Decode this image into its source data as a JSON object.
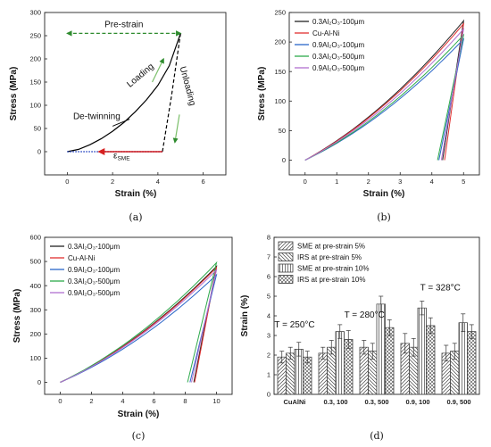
{
  "chart_data": [
    {
      "panel_label": "(a)",
      "type": "line",
      "xlabel": "Strain (%)",
      "ylabel": "Stress (MPa)",
      "xlim": [
        -1,
        7
      ],
      "ylim": [
        -50,
        300
      ],
      "xticks": [
        0,
        2,
        4,
        6
      ],
      "yticks": [
        0,
        50,
        100,
        150,
        200,
        250,
        300
      ],
      "curves": [
        {
          "role": "loading",
          "style": "solid",
          "color": "#000000",
          "points": [
            [
              0,
              0
            ],
            [
              0.5,
              5
            ],
            [
              1,
              15
            ],
            [
              1.5,
              28
            ],
            [
              2,
              44
            ],
            [
              2.5,
              63
            ],
            [
              3,
              86
            ],
            [
              3.5,
              112
            ],
            [
              4,
              143
            ],
            [
              4.5,
              185
            ],
            [
              5,
              255
            ]
          ]
        },
        {
          "role": "unloading",
          "style": "dashed",
          "color": "#000000",
          "points": [
            [
              5,
              255
            ],
            [
              4.6,
              120
            ],
            [
              4.3,
              30
            ],
            [
              4.2,
              0
            ]
          ]
        },
        {
          "role": "pre-strain",
          "style": "dashed-arrow",
          "color": "#2e8b2e",
          "points": [
            [
              0,
              255
            ],
            [
              5,
              255
            ]
          ]
        },
        {
          "role": "recovery",
          "style": "dotted",
          "color": "#1f3fbf",
          "points": [
            [
              0,
              0
            ],
            [
              4.2,
              0
            ]
          ]
        },
        {
          "role": "sme-arrow",
          "style": "arrow",
          "color": "#d62020",
          "points": [
            [
              4.2,
              0
            ],
            [
              1.4,
              0
            ]
          ]
        }
      ],
      "annotations": [
        {
          "text": "Pre-strain",
          "x": 2.5,
          "y": 268,
          "color": "#e02020"
        },
        {
          "text": "Loading",
          "x": 3.3,
          "y": 160,
          "rotate": -40
        },
        {
          "text": "Unloading",
          "x": 5.2,
          "y": 140,
          "rotate": 75
        },
        {
          "text": "De-twinning",
          "x": 1.3,
          "y": 70
        },
        {
          "text": "ε",
          "sub": "SME",
          "x": 2.4,
          "y": -14,
          "color": "#d62020"
        }
      ]
    },
    {
      "panel_label": "(b)",
      "type": "line",
      "xlabel": "Strain (%)",
      "ylabel": "Stress (MPa)",
      "xlim": [
        -0.5,
        5.5
      ],
      "ylim": [
        -25,
        250
      ],
      "xticks": [
        0,
        1,
        2,
        3,
        4,
        5
      ],
      "yticks": [
        0,
        50,
        100,
        150,
        200,
        250
      ],
      "legend_position": "top-left",
      "series": [
        {
          "name": "0.3Al₂O₃-100μm",
          "color": "#222222",
          "peak": [
            5,
            236
          ],
          "end": [
            4.34,
            0
          ]
        },
        {
          "name": "Cu-Al-Ni",
          "color": "#e03030",
          "peak": [
            5,
            231
          ],
          "end": [
            4.4,
            0
          ]
        },
        {
          "name": "0.9Al₂O₃-100μm",
          "color": "#2a66c8",
          "peak": [
            5,
            205
          ],
          "end": [
            4.22,
            0
          ]
        },
        {
          "name": "0.3Al₂O₃-500μm",
          "color": "#2eaa4c",
          "peak": [
            5,
            212
          ],
          "end": [
            4.18,
            0
          ]
        },
        {
          "name": "0.9Al₂O₃-500μm",
          "color": "#b070d0",
          "peak": [
            5,
            222
          ],
          "end": [
            4.3,
            0
          ]
        }
      ]
    },
    {
      "panel_label": "(c)",
      "type": "line",
      "xlabel": "Strain (%)",
      "ylabel": "Stress (MPa)",
      "xlim": [
        -1,
        11
      ],
      "ylim": [
        -50,
        600
      ],
      "xticks": [
        0,
        2,
        4,
        6,
        8,
        10
      ],
      "yticks": [
        0,
        100,
        200,
        300,
        400,
        500,
        600
      ],
      "legend_position": "top-left",
      "series": [
        {
          "name": "0.3Al₂O₃-100μm",
          "color": "#222222",
          "peak": [
            10,
            480
          ],
          "end": [
            8.55,
            0
          ]
        },
        {
          "name": "Cu-Al-Ni",
          "color": "#e03030",
          "peak": [
            10,
            475
          ],
          "end": [
            8.6,
            0
          ]
        },
        {
          "name": "0.9Al₂O₃-100μm",
          "color": "#2a66c8",
          "peak": [
            10,
            445
          ],
          "end": [
            8.3,
            0
          ]
        },
        {
          "name": "0.3Al₂O₃-500μm",
          "color": "#2eaa4c",
          "peak": [
            10,
            495
          ],
          "end": [
            8.15,
            0
          ]
        },
        {
          "name": "0.9Al₂O₃-500μm",
          "color": "#b070d0",
          "peak": [
            10,
            465
          ],
          "end": [
            8.4,
            0
          ]
        }
      ]
    },
    {
      "panel_label": "(d)",
      "type": "bar",
      "xlabel": "",
      "ylabel": "Strain (%)",
      "ylim": [
        0,
        8
      ],
      "yticks": [
        0,
        1,
        2,
        3,
        4,
        5,
        6,
        7,
        8
      ],
      "categories": [
        "CuAlNi",
        "0.3, 100",
        "0.3, 500",
        "0.9, 100",
        "0.9, 500"
      ],
      "legend_position": "top-left",
      "series": [
        {
          "name": "SME at pre-strain 5%",
          "pattern": "diag-right",
          "values": [
            1.9,
            2.1,
            2.4,
            2.6,
            2.1
          ],
          "errors": [
            0.3,
            0.3,
            0.35,
            0.5,
            0.4
          ]
        },
        {
          "name": "IRS at pre-strain 5%",
          "pattern": "diag-left",
          "values": [
            2.1,
            2.4,
            2.2,
            2.4,
            2.2
          ],
          "errors": [
            0.3,
            0.35,
            0.4,
            0.45,
            0.4
          ]
        },
        {
          "name": "SME at pre-strain 10%",
          "pattern": "vertical",
          "values": [
            2.3,
            3.2,
            4.6,
            4.4,
            3.65
          ],
          "errors": [
            0.35,
            0.35,
            0.4,
            0.35,
            0.45
          ]
        },
        {
          "name": "IRS at pre-strain 10%",
          "pattern": "crosshatch",
          "values": [
            1.9,
            2.8,
            3.4,
            3.5,
            3.2
          ],
          "errors": [
            0.3,
            0.45,
            0.4,
            0.4,
            0.35
          ]
        }
      ],
      "annotations": [
        {
          "text": "T = 250°C",
          "x": 0,
          "y": 3.4
        },
        {
          "text": "T = 280°C",
          "x": 1.7,
          "y": 3.9
        },
        {
          "text": "T = 328°C",
          "x": 3.55,
          "y": 5.3
        }
      ]
    }
  ]
}
